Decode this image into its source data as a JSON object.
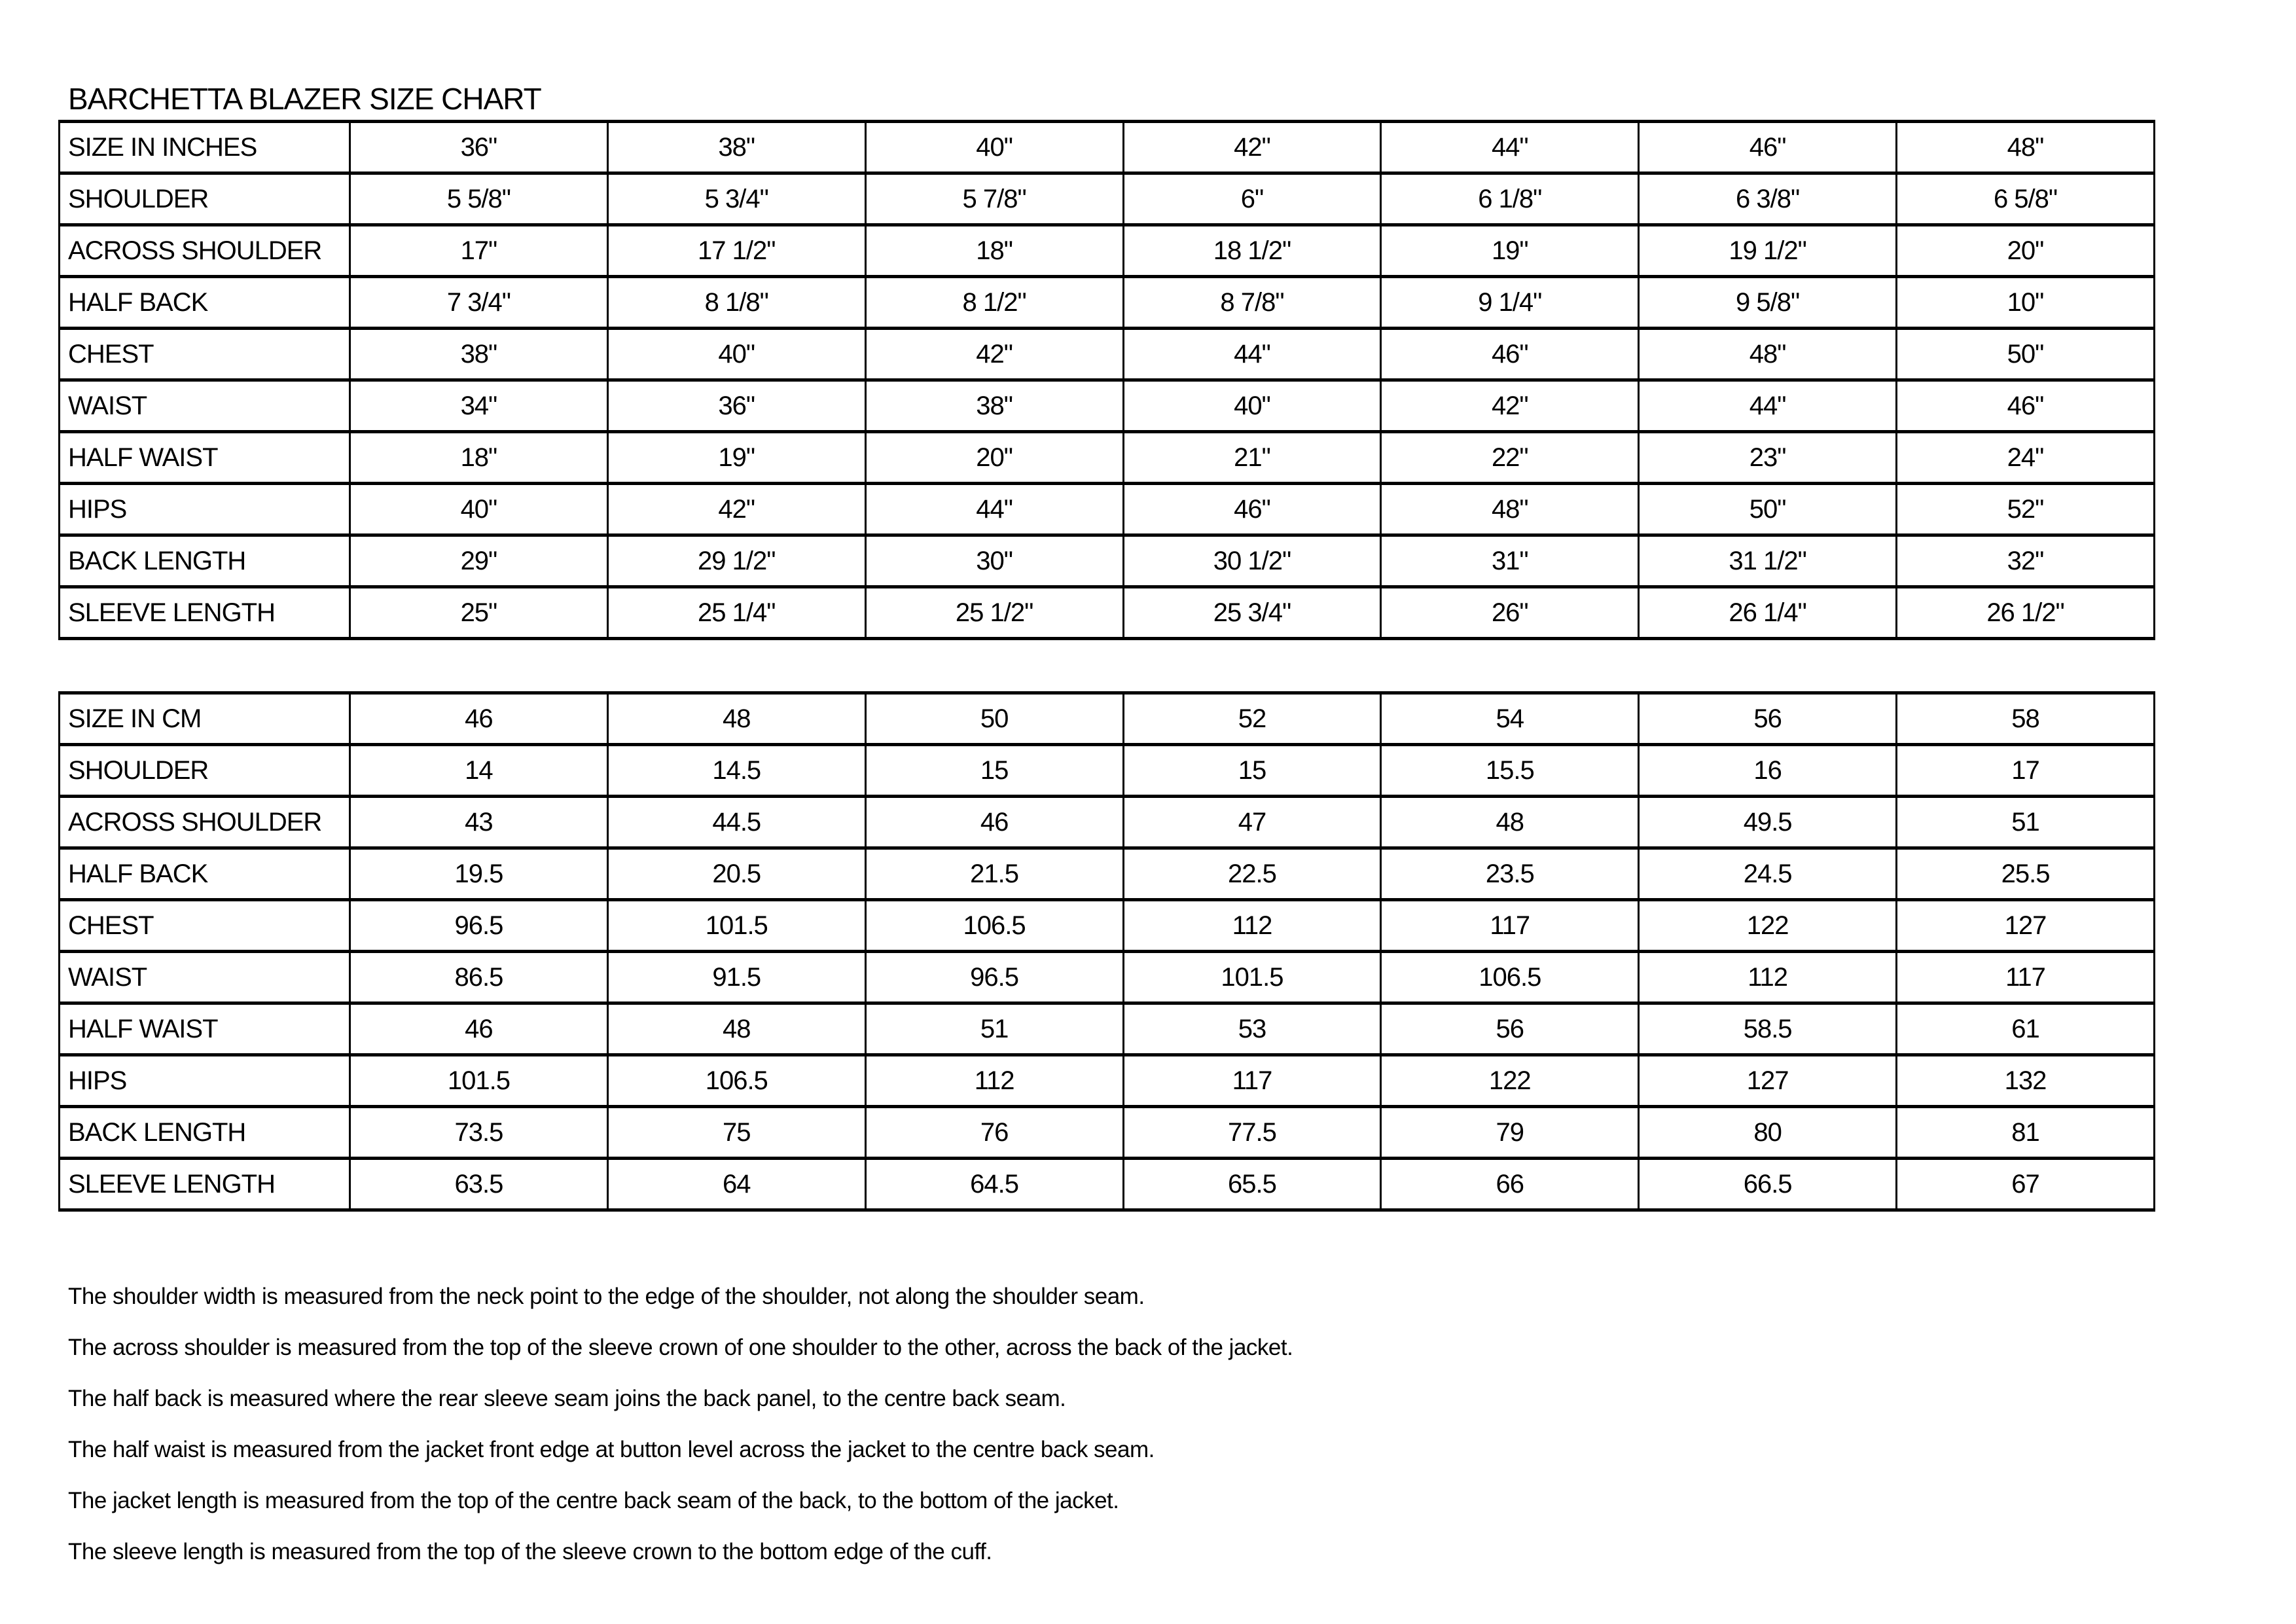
{
  "title": "BARCHETTA BLAZER SIZE CHART",
  "tables": [
    {
      "name": "inches",
      "rows": [
        {
          "label": "SIZE IN INCHES",
          "values": [
            "36\"",
            "38\"",
            "40\"",
            "42\"",
            "44\"",
            "46\"",
            "48\""
          ]
        },
        {
          "label": "SHOULDER",
          "values": [
            "5 5/8\"",
            "5 3/4\"",
            "5 7/8\"",
            "6\"",
            "6 1/8\"",
            "6 3/8\"",
            "6 5/8\""
          ]
        },
        {
          "label": "ACROSS SHOULDER",
          "values": [
            "17\"",
            "17 1/2\"",
            "18\"",
            "18 1/2\"",
            "19\"",
            "19 1/2\"",
            "20\""
          ]
        },
        {
          "label": "HALF BACK",
          "values": [
            "7 3/4\"",
            "8 1/8\"",
            "8 1/2\"",
            "8 7/8\"",
            "9 1/4\"",
            "9 5/8\"",
            "10\""
          ]
        },
        {
          "label": "CHEST",
          "values": [
            "38\"",
            "40\"",
            "42\"",
            "44\"",
            "46\"",
            "48\"",
            "50\""
          ]
        },
        {
          "label": "WAIST",
          "values": [
            "34\"",
            "36\"",
            "38\"",
            "40\"",
            "42\"",
            "44\"",
            "46\""
          ]
        },
        {
          "label": "HALF WAIST",
          "values": [
            "18\"",
            "19\"",
            "20\"",
            "21\"",
            "22\"",
            "23\"",
            "24\""
          ]
        },
        {
          "label": "HIPS",
          "values": [
            "40\"",
            "42\"",
            "44\"",
            "46\"",
            "48\"",
            "50\"",
            "52\""
          ]
        },
        {
          "label": "BACK LENGTH",
          "values": [
            "29\"",
            "29 1/2\"",
            "30\"",
            "30 1/2\"",
            "31\"",
            "31 1/2\"",
            "32\""
          ]
        },
        {
          "label": "SLEEVE LENGTH",
          "values": [
            "25\"",
            "25 1/4\"",
            "25 1/2\"",
            "25 3/4\"",
            "26\"",
            "26 1/4\"",
            "26 1/2\""
          ]
        }
      ]
    },
    {
      "name": "cm",
      "rows": [
        {
          "label": "SIZE IN CM",
          "values": [
            "46",
            "48",
            "50",
            "52",
            "54",
            "56",
            "58"
          ]
        },
        {
          "label": "SHOULDER",
          "values": [
            "14",
            "14.5",
            "15",
            "15",
            "15.5",
            "16",
            "17"
          ]
        },
        {
          "label": "ACROSS SHOULDER",
          "values": [
            "43",
            "44.5",
            "46",
            "47",
            "48",
            "49.5",
            "51"
          ]
        },
        {
          "label": "HALF BACK",
          "values": [
            "19.5",
            "20.5",
            "21.5",
            "22.5",
            "23.5",
            "24.5",
            "25.5"
          ]
        },
        {
          "label": "CHEST",
          "values": [
            "96.5",
            "101.5",
            "106.5",
            "112",
            "117",
            "122",
            "127"
          ]
        },
        {
          "label": "WAIST",
          "values": [
            "86.5",
            "91.5",
            "96.5",
            "101.5",
            "106.5",
            "112",
            "117"
          ]
        },
        {
          "label": "HALF WAIST",
          "values": [
            "46",
            "48",
            "51",
            "53",
            "56",
            "58.5",
            "61"
          ]
        },
        {
          "label": "HIPS",
          "values": [
            "101.5",
            "106.5",
            "112",
            "117",
            "122",
            "127",
            "132"
          ]
        },
        {
          "label": "BACK LENGTH",
          "values": [
            "73.5",
            "75",
            "76",
            "77.5",
            "79",
            "80",
            "81"
          ]
        },
        {
          "label": "SLEEVE LENGTH",
          "values": [
            "63.5",
            "64",
            "64.5",
            "65.5",
            "66",
            "66.5",
            "67"
          ]
        }
      ]
    }
  ],
  "notes": [
    "The shoulder width is measured from the neck point to the edge of the shoulder, not along the shoulder seam.",
    "The across shoulder is measured from the top of the sleeve crown of one shoulder to the other, across the back of the jacket.",
    "The half back is measured where the rear sleeve seam joins the back panel, to the centre back seam.",
    "The half waist is measured from the jacket front edge at button level across the jacket to the centre back seam.",
    "The jacket length is measured from the top of the centre back seam of the back, to the bottom of the jacket.",
    "The sleeve length is measured from the top of the sleeve crown to the bottom edge of the cuff."
  ],
  "colors": {
    "background": "#ffffff",
    "text": "#000000",
    "border": "#000000"
  }
}
